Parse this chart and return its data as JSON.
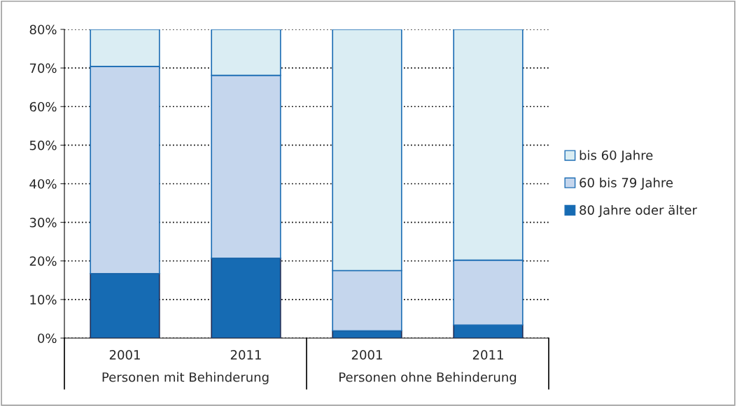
{
  "chart_data": {
    "type": "bar",
    "stacked": true,
    "categories": [
      "2001",
      "2011",
      "2001",
      "2011"
    ],
    "series": [
      {
        "name": "80 Jahre oder älter",
        "color": "#166bb3",
        "values": [
          16.7,
          20.7,
          1.9,
          3.4
        ]
      },
      {
        "name": "60 bis 79 Jahre",
        "color": "#c5d6ed",
        "values": [
          53.7,
          47.4,
          15.6,
          16.8
        ]
      },
      {
        "name": "bis 60 Jahre",
        "color": "#daedf3",
        "values": [
          9.6,
          11.9,
          62.5,
          59.8
        ]
      }
    ],
    "ylim": [
      0,
      80
    ],
    "yticks": [
      {
        "value": 0,
        "label": "0%"
      },
      {
        "value": 10,
        "label": "10%"
      },
      {
        "value": 20,
        "label": "20%"
      },
      {
        "value": 30,
        "label": "30%"
      },
      {
        "value": 40,
        "label": "40%"
      },
      {
        "value": 50,
        "label": "50%"
      },
      {
        "value": 60,
        "label": "60%"
      },
      {
        "value": 70,
        "label": "70%"
      },
      {
        "value": 80,
        "label": "80%"
      }
    ],
    "grid": "y",
    "legend": "right",
    "annotations": [
      "Personen mit Behinderung",
      "Personen ohne Behinderung"
    ]
  }
}
